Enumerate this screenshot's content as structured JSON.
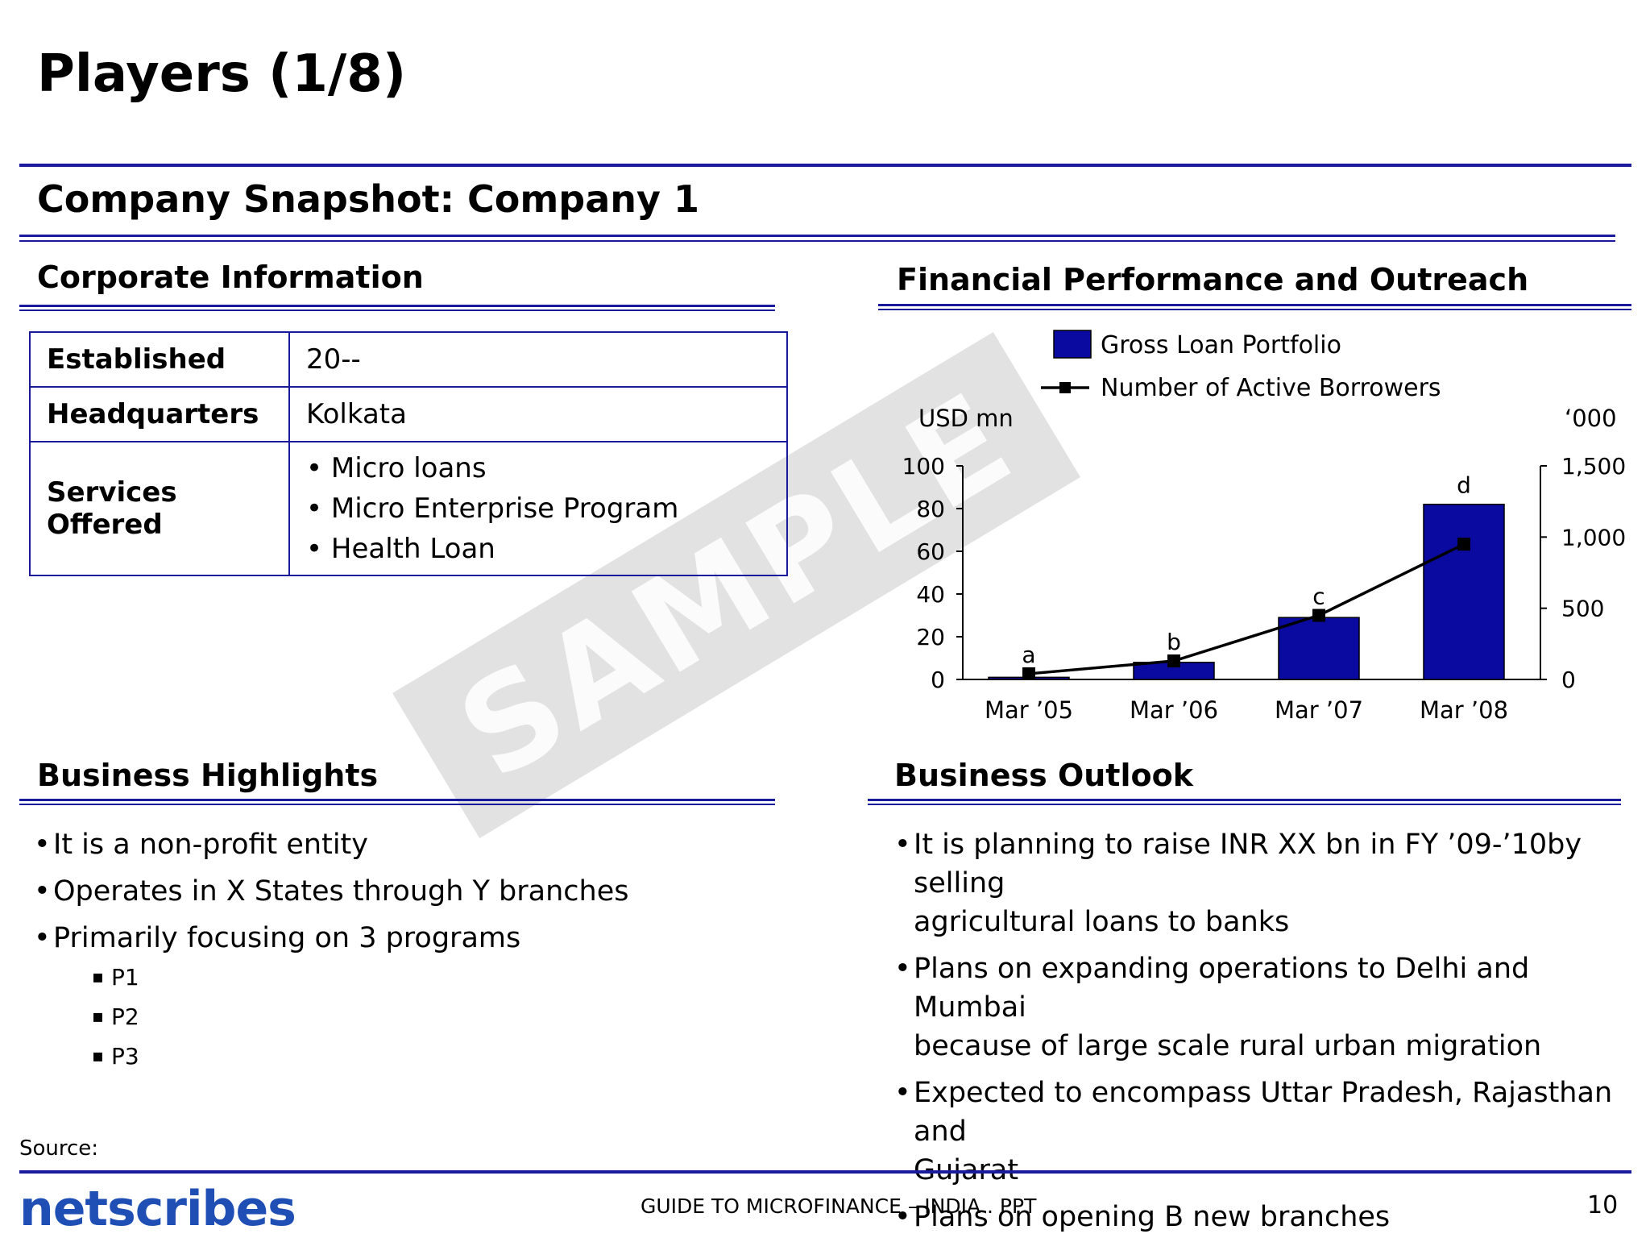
{
  "slide_title": "Players (1/8)",
  "snapshot_title": "Company Snapshot: Company 1",
  "corporate": {
    "heading": "Corporate Information",
    "rows": [
      {
        "key": "Established",
        "value": "20--"
      },
      {
        "key": "Headquarters",
        "value": "Kolkata"
      },
      {
        "key": "Services Offered",
        "items": [
          "Micro loans",
          "Micro Enterprise Program",
          "Health Loan"
        ]
      }
    ]
  },
  "financial": {
    "heading": "Financial Performance and Outreach"
  },
  "watermark": "SAMPLE",
  "chart_data": {
    "type": "bar",
    "categories": [
      "Mar ’05",
      "Mar ’06",
      "Mar ’07",
      "Mar ’08"
    ],
    "series": [
      {
        "name": "Gross Loan Portfolio",
        "type": "bar",
        "axis": "left",
        "values": [
          1,
          8,
          29,
          82
        ],
        "color": "#0a0aa0"
      },
      {
        "name": "Number of Active Borrowers",
        "type": "line",
        "axis": "right",
        "values": [
          40,
          130,
          450,
          950
        ],
        "color": "#000000"
      }
    ],
    "bar_labels": [
      "a",
      "b",
      "c",
      "d"
    ],
    "left_axis": {
      "label": "USD mn",
      "range": [
        0,
        100
      ],
      "ticks": [
        "100",
        "80",
        "60",
        "40",
        "20",
        "0"
      ],
      "tick_values": [
        100,
        80,
        60,
        40,
        20,
        0
      ]
    },
    "right_axis": {
      "label": "‘000",
      "range": [
        0,
        1500
      ],
      "ticks": [
        "1,500",
        "1,000",
        "500",
        "0"
      ],
      "tick_values": [
        1500,
        1000,
        500,
        0
      ]
    },
    "legend_position": "top",
    "grid": false
  },
  "highlights": {
    "heading": "Business Highlights",
    "items": [
      "It is a non-profit entity",
      "Operates in X States through Y branches",
      "Primarily focusing on 3 programs"
    ],
    "sub_items": [
      "P1",
      "P2",
      "P3"
    ]
  },
  "outlook": {
    "heading": "Business Outlook",
    "items": [
      [
        "It is planning to raise INR XX bn in FY ’09-’10by selling",
        "agricultural loans to banks"
      ],
      [
        "Plans on expanding operations to Delhi and Mumbai",
        "because of large scale rural urban migration"
      ],
      [
        "Expected to encompass Uttar Pradesh, Rajasthan and",
        "Gujarat"
      ],
      [
        "Plans on opening B new branches"
      ]
    ]
  },
  "footer": {
    "source": "Source:",
    "logo": "netscribes",
    "center": "GUIDE TO MICROFINANCE – INDIA . PPT",
    "page": "10"
  }
}
